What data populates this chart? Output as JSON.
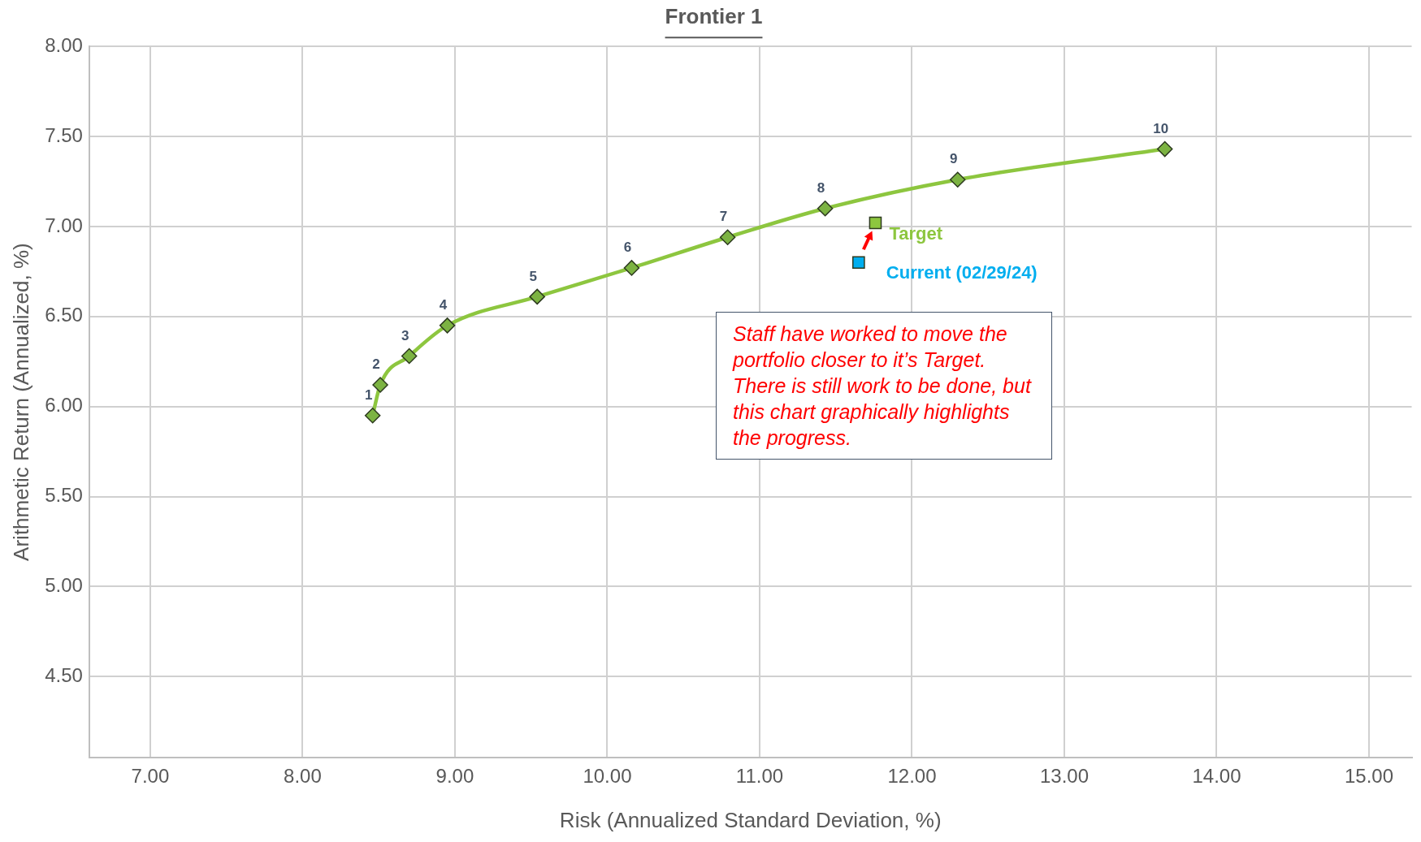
{
  "chart_data": {
    "type": "line",
    "title": "Frontier 1",
    "xlabel": "Risk (Annualized Standard Deviation, %)",
    "ylabel": "Arithmetic Return (Annualized, %)",
    "xlim": [
      6.6,
      15.28
    ],
    "xticks": [
      {
        "value": 7,
        "label": "7.00"
      },
      {
        "value": 8,
        "label": "8.00"
      },
      {
        "value": 9,
        "label": "9.00"
      },
      {
        "value": 10,
        "label": "10.00"
      },
      {
        "value": 11,
        "label": "11.00"
      },
      {
        "value": 12,
        "label": "12.00"
      },
      {
        "value": 13,
        "label": "13.00"
      },
      {
        "value": 14,
        "label": "14.00"
      },
      {
        "value": 15,
        "label": "15.00"
      }
    ],
    "ylim": [
      4.05,
      8.0
    ],
    "yticks": [
      {
        "value": 4.5,
        "label": "4.50"
      },
      {
        "value": 5,
        "label": "5.00"
      },
      {
        "value": 5.5,
        "label": "5.50"
      },
      {
        "value": 6,
        "label": "6.00"
      },
      {
        "value": 6.5,
        "label": "6.50"
      },
      {
        "value": 7,
        "label": "7.00"
      },
      {
        "value": 7.5,
        "label": "7.50"
      },
      {
        "value": 8,
        "label": "8.00"
      }
    ],
    "grid": true,
    "legend": false,
    "series": [
      {
        "type": "line",
        "color": "#8dc63f",
        "marker": "diamond",
        "x": [
          8.46,
          8.51,
          8.7,
          8.95,
          9.54,
          10.16,
          10.79,
          11.43,
          12.3,
          13.66
        ],
        "values": [
          5.95,
          6.12,
          6.28,
          6.45,
          6.61,
          6.77,
          6.94,
          7.1,
          7.26,
          7.43
        ]
      },
      {
        "type": "scatter",
        "name": "Target",
        "color": "#8dc63f",
        "marker": "square",
        "x": [
          11.76
        ],
        "values": [
          7.02
        ]
      },
      {
        "type": "scatter",
        "name": "Current (02/29/24)",
        "color": "#00aeef",
        "marker": "square",
        "x": [
          11.65
        ],
        "values": [
          6.8
        ]
      }
    ],
    "annotations": [
      {
        "text": "1",
        "x": 8.46,
        "y": 5.95
      },
      {
        "text": "2",
        "x": 8.51,
        "y": 6.12
      },
      {
        "text": "3",
        "x": 8.7,
        "y": 6.28
      },
      {
        "text": "4",
        "x": 8.95,
        "y": 6.45
      },
      {
        "text": "5",
        "x": 9.54,
        "y": 6.61
      },
      {
        "text": "6",
        "x": 10.16,
        "y": 6.77
      },
      {
        "text": "7",
        "x": 10.79,
        "y": 6.94
      },
      {
        "text": "8",
        "x": 11.43,
        "y": 7.1
      },
      {
        "text": "9",
        "x": 12.3,
        "y": 7.26
      },
      {
        "text": "10",
        "x": 13.66,
        "y": 7.43
      },
      "Staff have worked to move the portfolio closer to it’s Target. There is still work to be done, but this chart graphically highlights the progress."
    ]
  }
}
